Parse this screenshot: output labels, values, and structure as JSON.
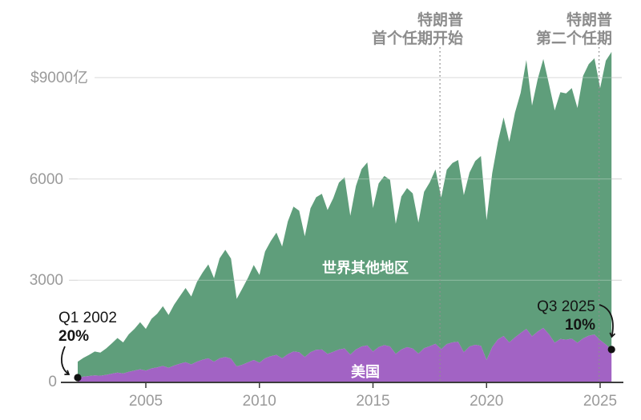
{
  "chart": {
    "y_tick_labels": [
      "$9000亿",
      "6000",
      "3000",
      "0"
    ],
    "x_tick_labels": [
      "2005",
      "2010",
      "2015",
      "2020",
      "2025"
    ],
    "colors": {
      "us_area": "#a263c4",
      "rest_area": "#5f9e7b",
      "axis": "#3d3d3d",
      "gridline": "#d8d8d8",
      "tick_label": "#9a9a9a",
      "event_line": "#909090",
      "event_label": "#8c8c8c",
      "annotation_text": "#141414",
      "dot": "#111111",
      "series_label": "#ffffff"
    }
  },
  "chart_data": {
    "type": "area",
    "stacked": true,
    "frequency": "quarterly",
    "x_start": "Q1 2002",
    "x_end": "Q3 2025",
    "ylim": [
      0,
      9900
    ],
    "y_tick_values": [
      9000,
      6000,
      3000,
      0
    ],
    "x_tick_years": [
      2005,
      2010,
      2015,
      2020,
      2025
    ],
    "unit": "亿美元 (hundred-million USD, quarterly)",
    "series": [
      {
        "name": "美国",
        "color": "#a263c4",
        "values": [
          118,
          145,
          165,
          185,
          175,
          200,
          235,
          265,
          240,
          290,
          325,
          365,
          325,
          390,
          420,
          465,
          410,
          475,
          530,
          575,
          510,
          590,
          650,
          690,
          590,
          690,
          730,
          680,
          450,
          500,
          570,
          640,
          560,
          690,
          750,
          790,
          690,
          810,
          890,
          870,
          730,
          870,
          940,
          950,
          820,
          880,
          950,
          980,
          800,
          950,
          1040,
          1070,
          890,
          1020,
          1080,
          1040,
          820,
          950,
          1020,
          980,
          830,
          990,
          1050,
          1120,
          960,
          1110,
          1160,
          1180,
          870,
          1040,
          1090,
          1060,
          640,
          1020,
          1250,
          1350,
          1160,
          1310,
          1440,
          1560,
          1340,
          1480,
          1590,
          1400,
          1150,
          1260,
          1240,
          1270,
          1150,
          1280,
          1360,
          1395,
          1230,
          1100,
          950
        ]
      },
      {
        "name": "世界其他地区",
        "color": "#5f9e7b",
        "values": [
          472,
          555,
          625,
          705,
          685,
          780,
          895,
          1025,
          920,
          1110,
          1235,
          1395,
          1235,
          1470,
          1590,
          1765,
          1560,
          1805,
          2000,
          2195,
          2010,
          2360,
          2580,
          2780,
          2470,
          2960,
          3170,
          2960,
          2000,
          2260,
          2510,
          2810,
          2600,
          3160,
          3410,
          3620,
          3310,
          3930,
          4290,
          4190,
          3570,
          4260,
          4520,
          4610,
          4260,
          4550,
          4940,
          5070,
          4110,
          4840,
          5250,
          5420,
          4250,
          4850,
          5010,
          4930,
          3850,
          4530,
          4710,
          4590,
          3880,
          4630,
          4850,
          5160,
          4490,
          5160,
          5310,
          5380,
          4650,
          5150,
          5440,
          5620,
          4140,
          5150,
          5850,
          6470,
          5940,
          6650,
          7110,
          7960,
          6830,
          7470,
          7960,
          7400,
          6880,
          7310,
          7290,
          7420,
          6950,
          7770,
          8040,
          8175,
          7460,
          8400,
          8810
        ]
      }
    ],
    "annotations": [
      {
        "text": "Q1 2002",
        "value_label": "20%",
        "point_series": "美国",
        "point_x": "Q1 2002",
        "point_value": 118
      },
      {
        "text": "Q3 2025",
        "value_label": "10%",
        "point_series": "美国",
        "point_x": "Q3 2025",
        "point_value": 950
      }
    ],
    "event_lines": [
      {
        "line1": "特朗普",
        "line2": "首个任期开始",
        "x_year": 2017.95
      },
      {
        "line1": "特朗普",
        "line2": "第二个任期",
        "x_year": 2024.95
      }
    ]
  }
}
